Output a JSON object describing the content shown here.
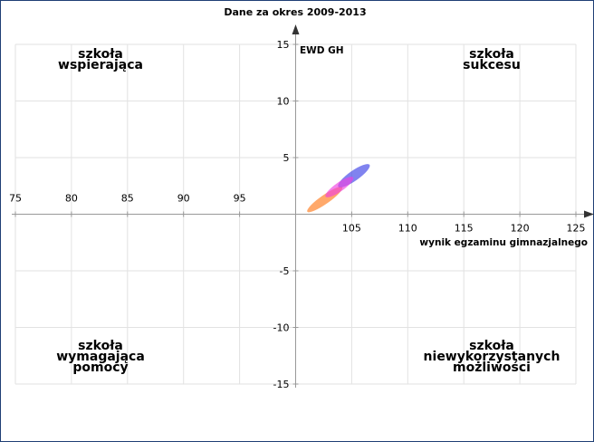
{
  "chart_data": {
    "type": "scatter",
    "title": "Dane za okres 2009-2013",
    "xlabel": "wynik egzaminu gimnazjalnego",
    "ylabel": "EWD GH",
    "xlim": [
      75,
      125
    ],
    "ylim": [
      -15,
      15
    ],
    "x_axis_crosses_y_at": 0,
    "y_axis_crosses_x_at": 100,
    "x_ticks": [
      75,
      80,
      85,
      90,
      95,
      105,
      110,
      115,
      120,
      125
    ],
    "y_ticks": [
      -15,
      -10,
      -5,
      5,
      10,
      15
    ],
    "grid": true,
    "quadrant_labels": {
      "top_left": [
        "szkoła",
        "wspierająca"
      ],
      "top_right": [
        "szkoła",
        "sukcesu"
      ],
      "bottom_left": [
        "szkoła",
        "wymagająca",
        "pomocy"
      ],
      "bottom_right": [
        "szkoła",
        "niewykorzystanych",
        "możliwości"
      ]
    },
    "ellipses": [
      {
        "cx": 102.6,
        "cy": 1.3,
        "rx": 1.9,
        "ry": 0.4,
        "rotation_deg": -35,
        "color": "#ff8c3a",
        "opacity": 0.75
      },
      {
        "cx": 105.2,
        "cy": 3.4,
        "rx": 1.7,
        "ry": 0.45,
        "rotation_deg": -35,
        "color": "#4a4ee8",
        "opacity": 0.7
      },
      {
        "cx": 103.9,
        "cy": 2.4,
        "rx": 1.5,
        "ry": 0.4,
        "rotation_deg": -35,
        "color": "#f040e0",
        "opacity": 0.65
      }
    ]
  }
}
